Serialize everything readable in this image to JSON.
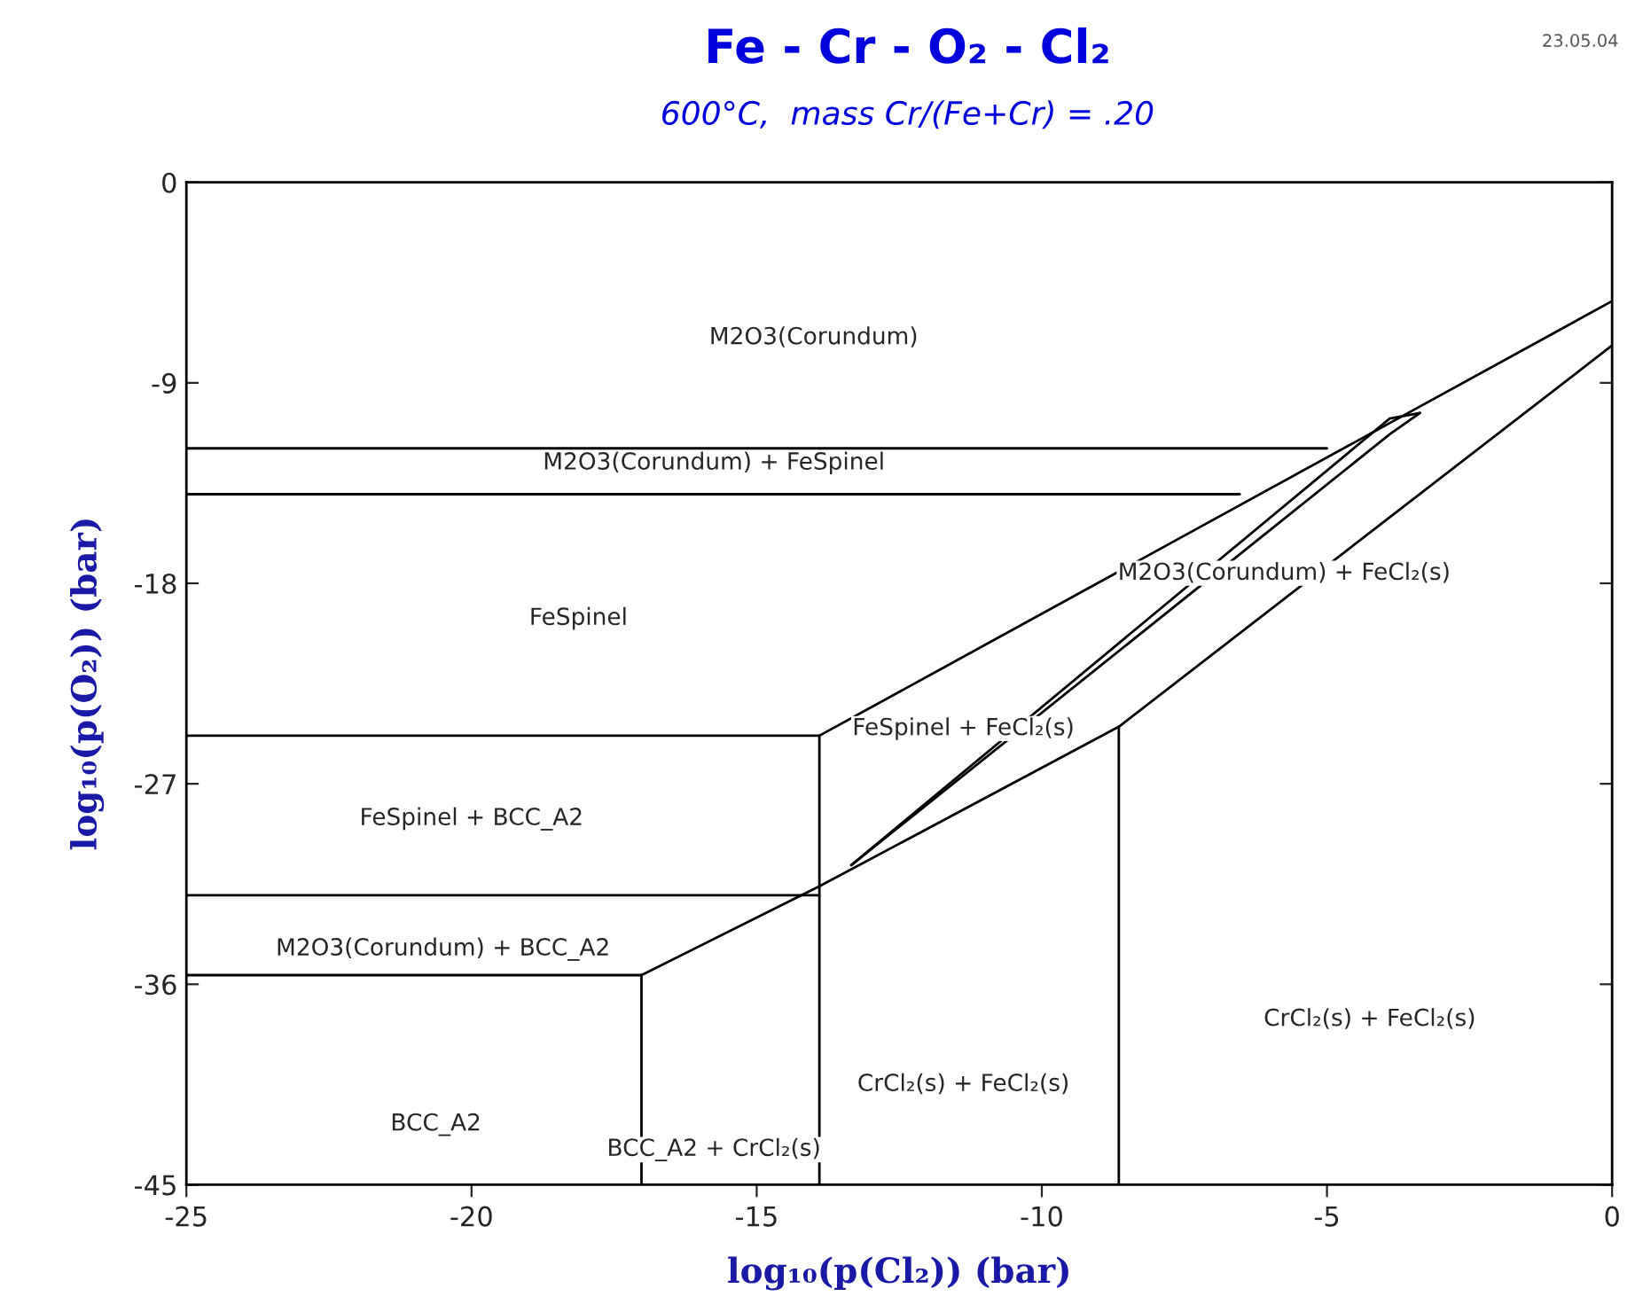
{
  "chart_data": {
    "type": "line",
    "title": "Fe - Cr - O₂ - Cl₂",
    "subtitle": "600°C,  mass Cr/(Fe+Cr) = .20",
    "xlabel": "log₁₀(p(Cl₂)) (bar)",
    "ylabel": "log₁₀(p(O₂)) (bar)",
    "xlim": [
      -25,
      0
    ],
    "xticks": [
      -25,
      -20,
      -15,
      -10,
      -5,
      0
    ],
    "ylim": [
      -45,
      0
    ],
    "yticks": [
      -45,
      -36,
      -27,
      -18,
      -9,
      0
    ],
    "grid": false,
    "legend": false,
    "marker": "none",
    "line_style": "solid",
    "series": [
      {
        "color": "#000000",
        "x": [
          -25,
          -5.0
        ],
        "values": [
          -11.94,
          -11.94
        ]
      },
      {
        "color": "#000000",
        "x": [
          -25,
          -6.53
        ],
        "values": [
          -14.0,
          -14.0
        ]
      },
      {
        "color": "#000000",
        "x": [
          -13.9,
          0
        ],
        "values": [
          -24.84,
          -5.33
        ]
      },
      {
        "color": "#000000",
        "x": [
          -25,
          -13.9
        ],
        "values": [
          -24.84,
          -24.84
        ]
      },
      {
        "color": "#000000",
        "x": [
          -13.9,
          -13.9
        ],
        "values": [
          -24.84,
          -45
        ]
      },
      {
        "color": "#000000",
        "x": [
          -25,
          -13.9
        ],
        "values": [
          -32.0,
          -32.0
        ]
      },
      {
        "color": "#000000",
        "x": [
          -17.02,
          -13.9,
          -8.65,
          0
        ],
        "values": [
          -35.59,
          -31.6,
          -24.44,
          -7.32
        ]
      },
      {
        "color": "#000000",
        "x": [
          -25,
          -17.02
        ],
        "values": [
          -35.59,
          -35.59
        ]
      },
      {
        "color": "#000000",
        "x": [
          -17.02,
          -17.02
        ],
        "values": [
          -35.59,
          -45
        ]
      },
      {
        "color": "#000000",
        "x": [
          -8.65,
          -8.65
        ],
        "values": [
          -24.44,
          -45
        ]
      },
      {
        "color": "#000000",
        "x": [
          -13.34,
          -3.9,
          -3.37
        ],
        "values": [
          -30.65,
          -10.6,
          -10.35
        ]
      },
      {
        "color": "#000000",
        "x": [
          -13.34,
          -3.9,
          -3.37
        ],
        "values": [
          -30.65,
          -11.31,
          -10.35
        ]
      }
    ],
    "annotations": [
      "M2O3(Corundum)",
      "M2O3(Corundum) + FeSpinel",
      "FeSpinel",
      "M2O3(Corundum) + FeCl₂(s)",
      "FeSpinel + FeCl₂(s)",
      "FeSpinel + BCC_A2",
      "M2O3(Corundum) + BCC_A2",
      "CrCl₂(s) + FeCl₂(s)",
      "CrCl₂(s) + FeCl₂(s)",
      "BCC_A2",
      "BCC_A2 + CrCl₂(s)",
      "23.05.04"
    ]
  }
}
